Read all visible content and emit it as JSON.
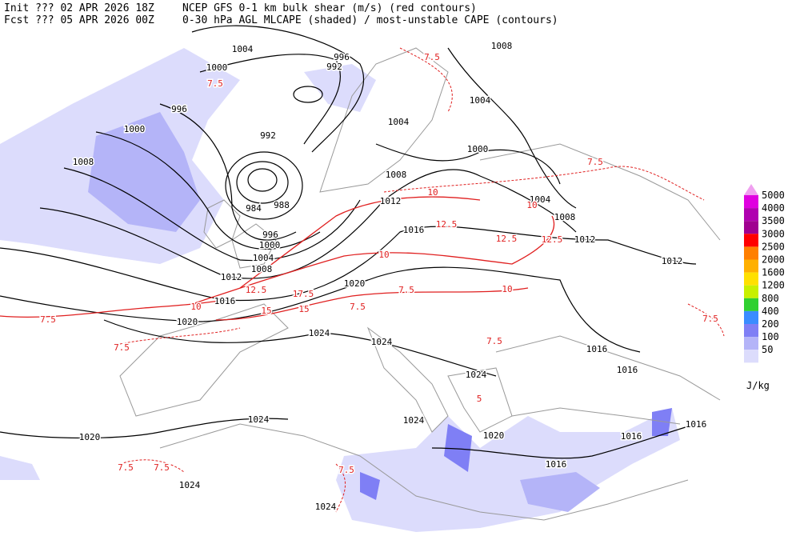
{
  "header": {
    "line1_left": "Init  ??? 02 APR 2026 18Z",
    "line1_right": "NCEP GFS 0-1 km bulk shear (m/s) (red contours)",
    "line2_left": "Fcst ??? 05 APR 2026 00Z",
    "line2_right": "0-30 hPa AGL MLCAPE (shaded) / most-unstable CAPE (contours)"
  },
  "pressure_labels": [
    "1004",
    "996",
    "992",
    "1000",
    "996",
    "1000",
    "1008",
    "992",
    "984",
    "988",
    "996",
    "1000",
    "1004",
    "1008",
    "1012",
    "1016",
    "1020",
    "1020",
    "1024",
    "1024",
    "1004",
    "1004",
    "1000",
    "1008",
    "1012",
    "1016",
    "1004",
    "1008",
    "1012",
    "1012",
    "1016",
    "1016",
    "1024",
    "1024",
    "1024",
    "1020",
    "1024",
    "1024",
    "1020",
    "1016",
    "1016",
    "1016",
    "1008"
  ],
  "shear_labels": [
    "7.5",
    "7.5",
    "10",
    "12.5",
    "10",
    "7.5",
    "15",
    "12.5",
    "10",
    "7.5",
    "7.5",
    "7.5",
    "7.5",
    "7.5",
    "7.5",
    "5",
    "7.5",
    "10",
    "12.5",
    "15",
    "17.5",
    "7.5",
    "12.5",
    "10",
    "7.5"
  ],
  "colorbar": {
    "levels": [
      5000,
      4000,
      3500,
      3000,
      2500,
      2000,
      1600,
      1200,
      800,
      400,
      200,
      100,
      50
    ],
    "colors": [
      "#e000e0",
      "#b000b0",
      "#a00090",
      "#ff0000",
      "#ff7f00",
      "#ffb000",
      "#ffe000",
      "#c8f000",
      "#30d030",
      "#3a8cff",
      "#7f7ff5",
      "#b4b4f8",
      "#dcdcfc"
    ],
    "extend_color": "#f0a0f0",
    "unit": "J/kg"
  }
}
